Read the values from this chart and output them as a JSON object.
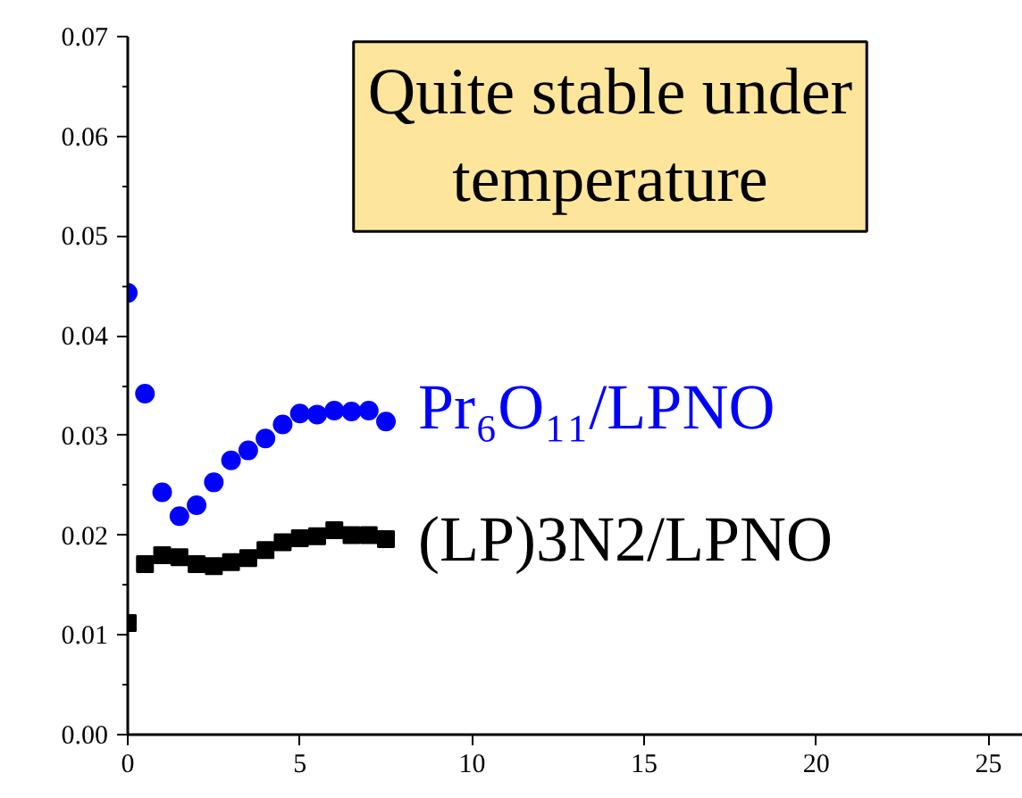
{
  "chart_data": {
    "type": "scatter",
    "x": [
      0,
      0.5,
      1,
      1.5,
      2,
      2.5,
      3,
      3.5,
      4,
      4.5,
      5,
      5.5,
      6,
      6.5,
      7,
      7.5
    ],
    "series": [
      {
        "name": "Pr₆O₁₁/LPNO",
        "color": "#0000ff",
        "marker": "circle",
        "values": [
          0.0443,
          0.0342,
          0.0243,
          0.0219,
          0.023,
          0.0253,
          0.0275,
          0.0285,
          0.0297,
          0.0311,
          0.0322,
          0.0321,
          0.0325,
          0.0324,
          0.0325,
          0.0314
        ]
      },
      {
        "name": "(LP)3N2/LPNO",
        "color": "#000000",
        "marker": "square",
        "values": [
          0.0112,
          0.0171,
          0.018,
          0.0178,
          0.0171,
          0.0169,
          0.0173,
          0.0177,
          0.0185,
          0.0193,
          0.0197,
          0.0199,
          0.0205,
          0.02,
          0.02,
          0.0196
        ]
      }
    ],
    "xlim": [
      0,
      26
    ],
    "xticks": [
      0,
      5,
      10,
      15,
      20,
      25
    ],
    "ylim": [
      0,
      0.07
    ],
    "yticks": [
      {
        "value": 0,
        "label": "0.00"
      },
      {
        "value": 0.01,
        "label": "0.01"
      },
      {
        "value": 0.02,
        "label": "0.02"
      },
      {
        "value": 0.03,
        "label": "0.03"
      },
      {
        "value": 0.04,
        "label": "0.04"
      },
      {
        "value": 0.05,
        "label": "0.05"
      },
      {
        "value": 0.06,
        "label": "0.06"
      },
      {
        "value": 0.07,
        "label": "0.07"
      }
    ],
    "annotations": [
      "Quite stable under\ntemperature"
    ],
    "grid": false,
    "legend": false
  }
}
